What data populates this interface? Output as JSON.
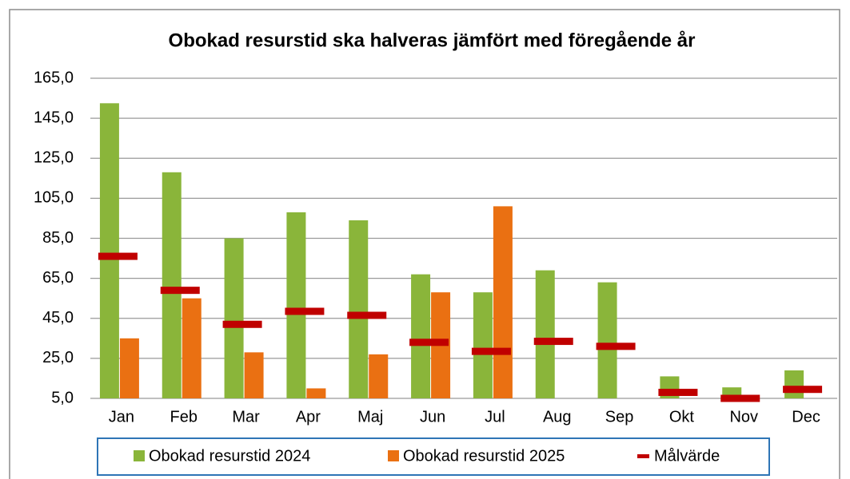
{
  "chart_data": {
    "type": "bar",
    "title": "Obokad resurstid ska halveras jämfört med föregående år",
    "categories": [
      "Jan",
      "Feb",
      "Mar",
      "Apr",
      "Maj",
      "Jun",
      "Jul",
      "Aug",
      "Sep",
      "Okt",
      "Nov",
      "Dec"
    ],
    "series": [
      {
        "name": "Obokad resurstid 2024",
        "color": "#8ab53a",
        "type": "bar",
        "values": [
          152.5,
          118,
          85,
          98,
          94,
          67,
          58,
          69,
          63,
          16,
          10.5,
          19
        ]
      },
      {
        "name": "Obokad resurstid 2025",
        "color": "#ea7012",
        "type": "bar",
        "values": [
          35,
          55,
          28,
          10,
          27,
          58,
          101,
          null,
          null,
          null,
          null,
          null
        ]
      },
      {
        "name": "Målvärde",
        "color": "#c00000",
        "type": "marker",
        "values": [
          76,
          59,
          42,
          48.5,
          46.5,
          33,
          28.5,
          33.5,
          31,
          8,
          5,
          9.5
        ]
      }
    ],
    "ylim": [
      5,
      165
    ],
    "yticks": [
      {
        "value": 5,
        "label": "5,0"
      },
      {
        "value": 25,
        "label": "25,0"
      },
      {
        "value": 45,
        "label": "45,0"
      },
      {
        "value": 65,
        "label": "65,0"
      },
      {
        "value": 85,
        "label": "85,0"
      },
      {
        "value": 105,
        "label": "105,0"
      },
      {
        "value": 125,
        "label": "125,0"
      },
      {
        "value": 145,
        "label": "145,0"
      },
      {
        "value": 165,
        "label": "165,0"
      }
    ],
    "grid": true,
    "legend": "bottom"
  }
}
